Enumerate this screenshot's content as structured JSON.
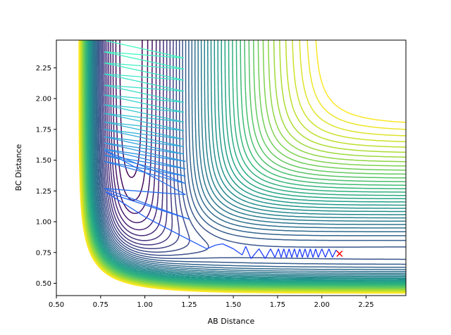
{
  "chart_data": {
    "type": "contour",
    "title": "",
    "xlabel": "AB Distance",
    "ylabel": "BC Distance",
    "xlim": [
      0.5,
      2.475
    ],
    "ylim": [
      0.4,
      2.475
    ],
    "xticks": [
      "0.50",
      "0.75",
      "1.00",
      "1.25",
      "1.50",
      "1.75",
      "2.00",
      "2.25"
    ],
    "yticks": [
      "0.50",
      "0.75",
      "1.00",
      "1.25",
      "1.50",
      "1.75",
      "2.00",
      "2.25"
    ],
    "grid": false,
    "contour_colormap": "viridis",
    "trajectory_colors": [
      "#40ffbe",
      "#1e3cff"
    ],
    "marker": {
      "x": 2.1,
      "y": 0.74,
      "symbol": "x",
      "color": "#ff0000"
    },
    "trajectory": [
      [
        0.78,
        2.47
      ],
      [
        1.22,
        2.33
      ],
      [
        0.77,
        2.38
      ],
      [
        1.22,
        2.24
      ],
      [
        0.77,
        2.29
      ],
      [
        1.22,
        2.15
      ],
      [
        0.77,
        2.2
      ],
      [
        1.22,
        2.06
      ],
      [
        0.77,
        2.11
      ],
      [
        1.22,
        1.97
      ],
      [
        0.77,
        2.03
      ],
      [
        1.22,
        1.89
      ],
      [
        0.77,
        1.95
      ],
      [
        1.22,
        1.81
      ],
      [
        0.77,
        1.88
      ],
      [
        1.22,
        1.74
      ],
      [
        0.77,
        1.81
      ],
      [
        1.22,
        1.67
      ],
      [
        0.77,
        1.75
      ],
      [
        1.22,
        1.61
      ],
      [
        0.77,
        1.69
      ],
      [
        1.22,
        1.55
      ],
      [
        0.77,
        1.64
      ],
      [
        1.23,
        1.49
      ],
      [
        0.77,
        1.59
      ],
      [
        1.23,
        1.43
      ],
      [
        0.77,
        1.54
      ],
      [
        1.23,
        1.37
      ],
      [
        0.77,
        1.49
      ],
      [
        1.23,
        1.31
      ],
      [
        0.77,
        1.58
      ],
      [
        1.23,
        1.22
      ],
      [
        0.77,
        1.27
      ],
      [
        1.25,
        1.02
      ],
      [
        0.78,
        1.24
      ],
      [
        1.0,
        1.04
      ],
      [
        1.2,
        0.89
      ],
      [
        1.35,
        0.78
      ],
      [
        1.4,
        0.81
      ],
      [
        1.44,
        0.82
      ],
      [
        1.5,
        0.78
      ],
      [
        1.55,
        0.73
      ],
      [
        1.57,
        0.8
      ],
      [
        1.6,
        0.7
      ],
      [
        1.645,
        0.78
      ],
      [
        1.68,
        0.7
      ],
      [
        1.71,
        0.78
      ],
      [
        1.735,
        0.71
      ],
      [
        1.755,
        0.78
      ],
      [
        1.77,
        0.71
      ],
      [
        1.785,
        0.78
      ],
      [
        1.8,
        0.71
      ],
      [
        1.815,
        0.78
      ],
      [
        1.83,
        0.71
      ],
      [
        1.845,
        0.78
      ],
      [
        1.86,
        0.71
      ],
      [
        1.875,
        0.78
      ],
      [
        1.89,
        0.71
      ],
      [
        1.905,
        0.78
      ],
      [
        1.92,
        0.71
      ],
      [
        1.935,
        0.78
      ],
      [
        1.95,
        0.71
      ],
      [
        1.965,
        0.78
      ],
      [
        1.98,
        0.71
      ],
      [
        2.0,
        0.78
      ],
      [
        2.02,
        0.71
      ],
      [
        2.04,
        0.78
      ],
      [
        2.06,
        0.71
      ],
      [
        2.08,
        0.77
      ],
      [
        2.1,
        0.74
      ]
    ]
  }
}
